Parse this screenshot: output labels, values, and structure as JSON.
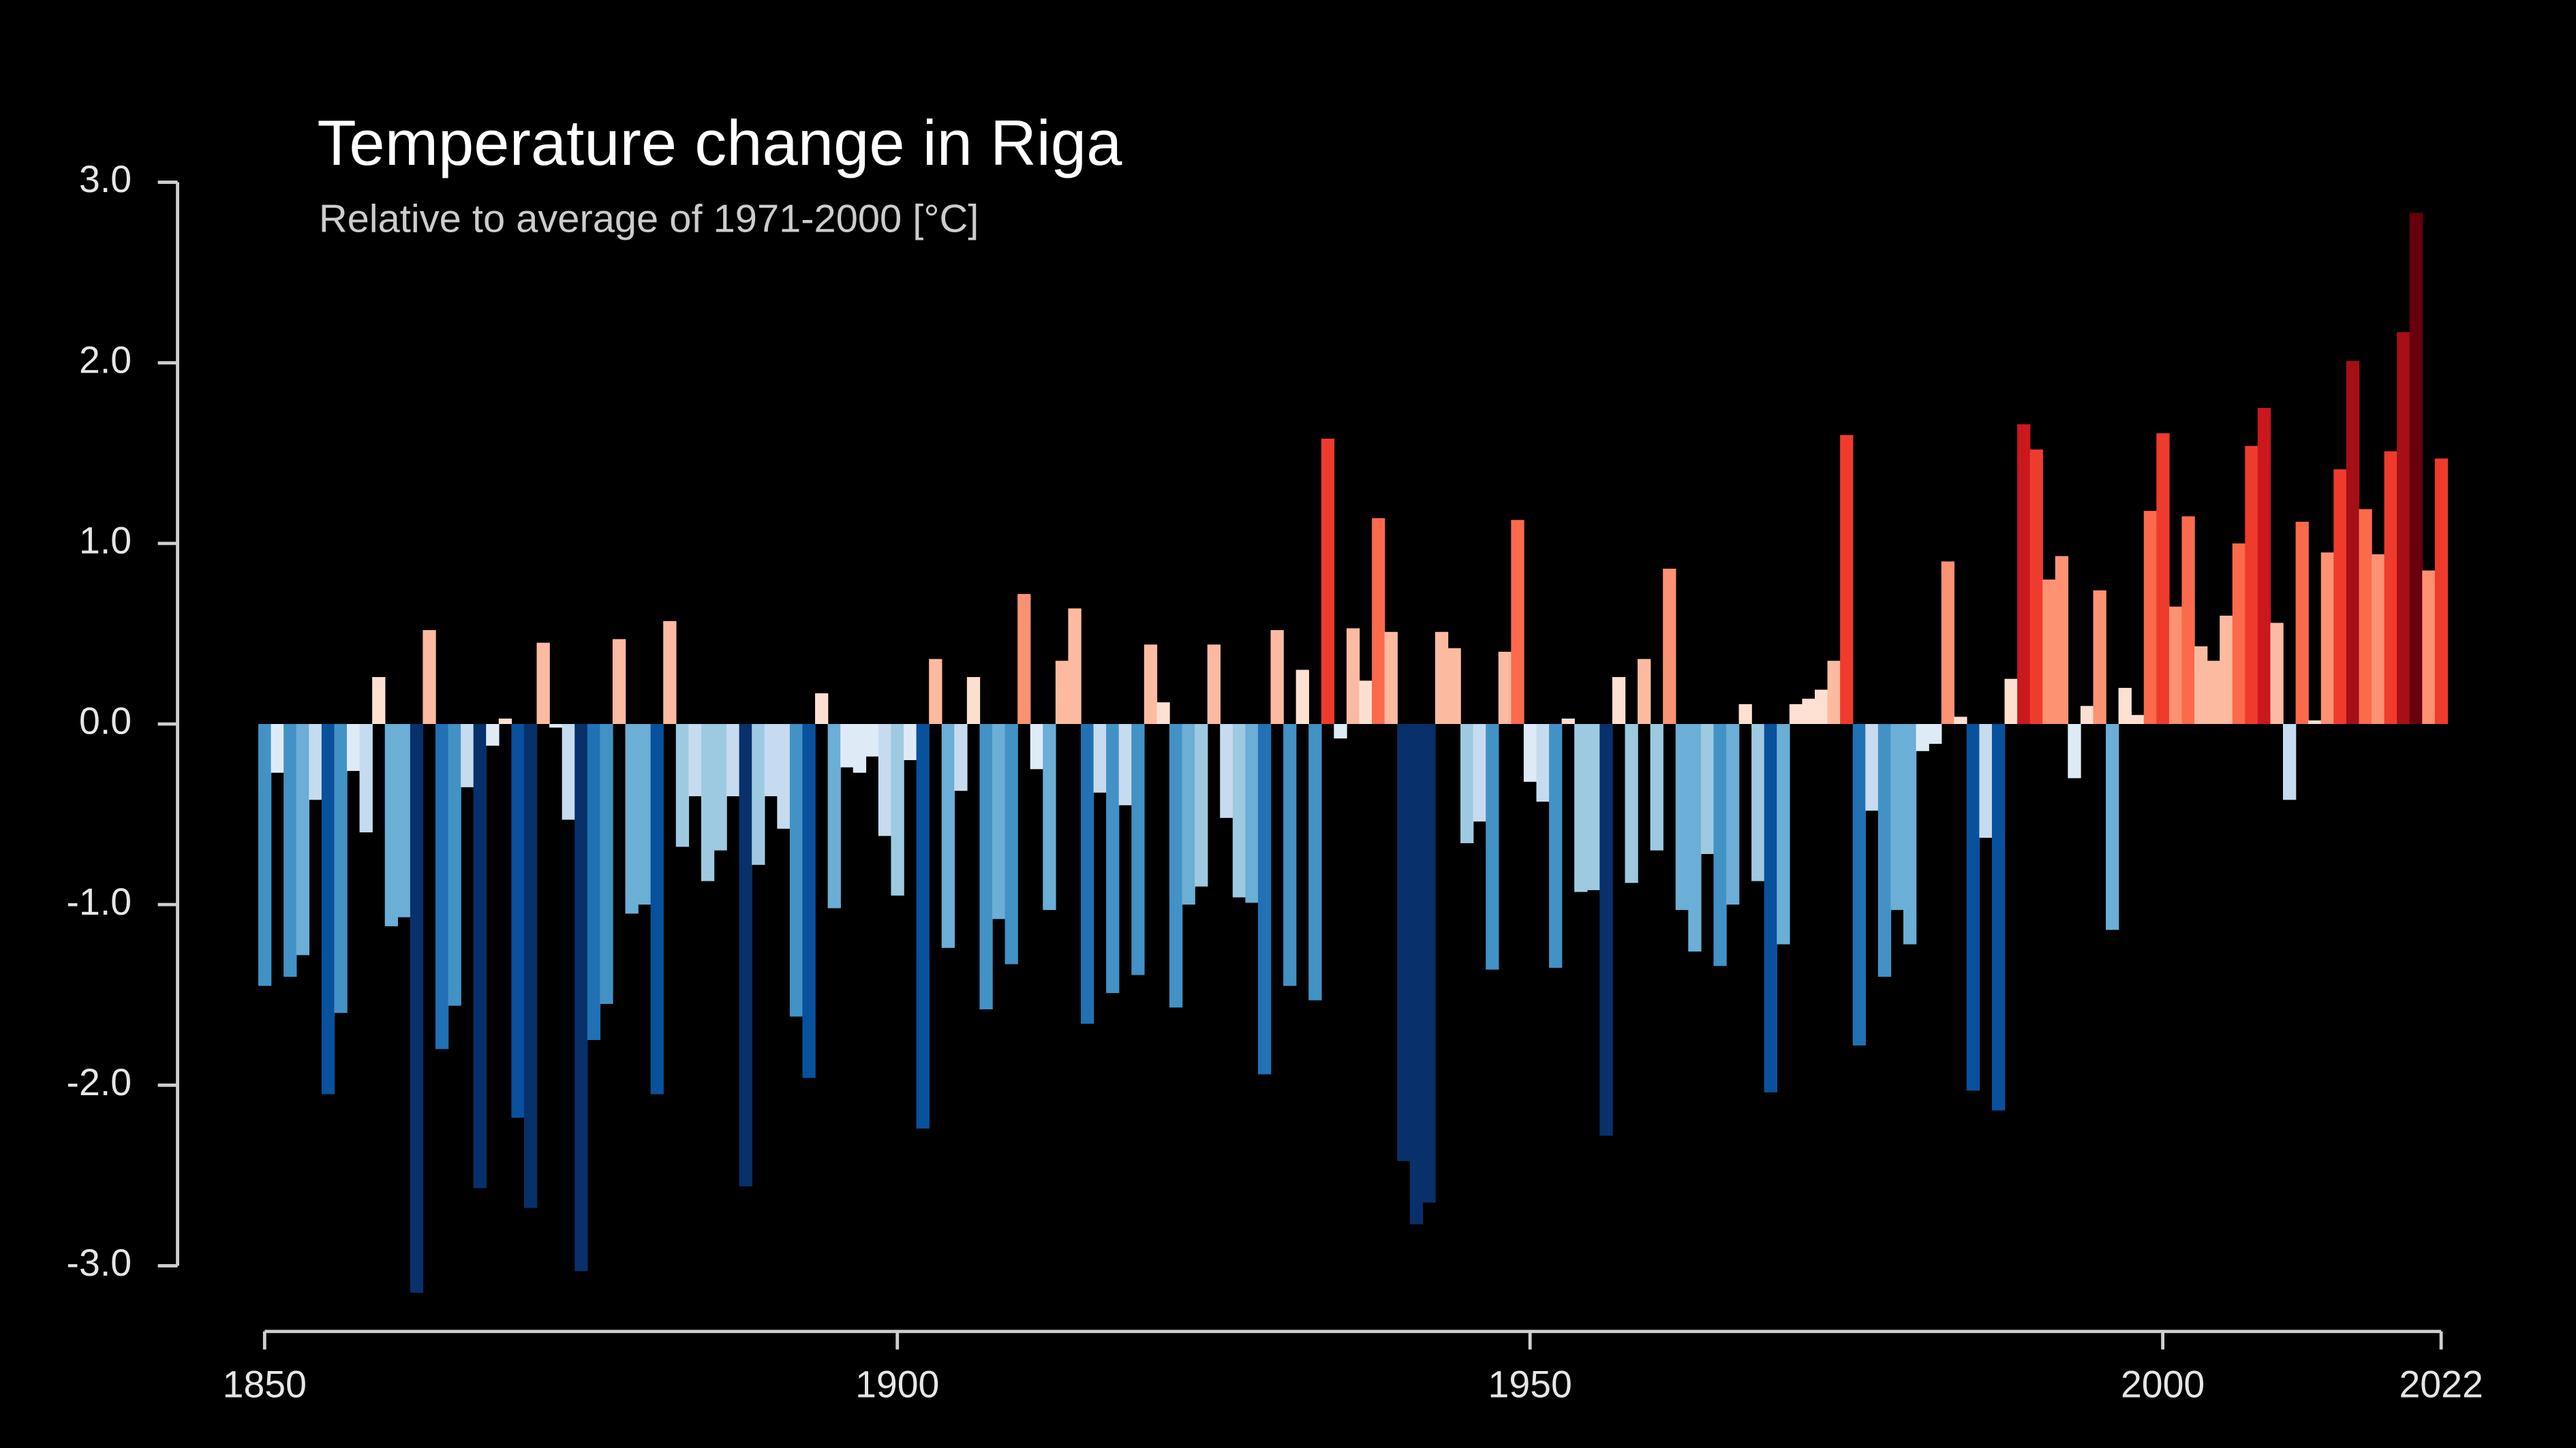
{
  "chart_data": {
    "type": "bar",
    "title": "Temperature change in Riga",
    "subtitle": "Relative to average of 1971-2000  [°C]",
    "x": [
      1850,
      1851,
      1852,
      1853,
      1854,
      1855,
      1856,
      1857,
      1858,
      1859,
      1860,
      1861,
      1862,
      1863,
      1864,
      1865,
      1866,
      1867,
      1868,
      1869,
      1870,
      1871,
      1872,
      1873,
      1874,
      1875,
      1876,
      1877,
      1878,
      1879,
      1880,
      1881,
      1882,
      1883,
      1884,
      1885,
      1886,
      1887,
      1888,
      1889,
      1890,
      1891,
      1892,
      1893,
      1894,
      1895,
      1896,
      1897,
      1898,
      1899,
      1900,
      1901,
      1902,
      1903,
      1904,
      1905,
      1906,
      1907,
      1908,
      1909,
      1910,
      1911,
      1912,
      1913,
      1914,
      1915,
      1916,
      1917,
      1918,
      1919,
      1920,
      1921,
      1922,
      1923,
      1924,
      1925,
      1926,
      1927,
      1928,
      1929,
      1930,
      1931,
      1932,
      1933,
      1934,
      1935,
      1936,
      1937,
      1938,
      1939,
      1940,
      1941,
      1942,
      1943,
      1944,
      1945,
      1946,
      1947,
      1948,
      1949,
      1950,
      1951,
      1952,
      1953,
      1954,
      1955,
      1956,
      1957,
      1958,
      1959,
      1960,
      1961,
      1962,
      1963,
      1964,
      1965,
      1966,
      1967,
      1968,
      1969,
      1970,
      1971,
      1972,
      1973,
      1974,
      1975,
      1976,
      1977,
      1978,
      1979,
      1980,
      1981,
      1982,
      1983,
      1984,
      1985,
      1986,
      1987,
      1988,
      1989,
      1990,
      1991,
      1992,
      1993,
      1994,
      1995,
      1996,
      1997,
      1998,
      1999,
      2000,
      2001,
      2002,
      2003,
      2004,
      2005,
      2006,
      2007,
      2008,
      2009,
      2010,
      2011,
      2012,
      2013,
      2014,
      2015,
      2016,
      2017,
      2018,
      2019,
      2020,
      2021,
      2022
    ],
    "values": [
      -1.45,
      -0.27,
      -1.4,
      -1.28,
      -0.42,
      -2.05,
      -1.6,
      -0.26,
      -0.6,
      0.26,
      -1.12,
      -1.07,
      -3.15,
      0.52,
      -1.8,
      -1.56,
      -0.35,
      -2.57,
      -0.12,
      0.03,
      -2.18,
      -2.68,
      0.45,
      -0.02,
      -0.53,
      -3.03,
      -1.75,
      -1.55,
      0.47,
      -1.05,
      -1.0,
      -2.05,
      0.57,
      -0.68,
      -0.4,
      -0.87,
      -0.7,
      -0.4,
      -2.56,
      -0.78,
      -0.4,
      -0.58,
      -1.62,
      -1.96,
      0.17,
      -1.02,
      -0.24,
      -0.27,
      -0.18,
      -0.62,
      -0.95,
      -0.2,
      -2.24,
      0.36,
      -1.24,
      -0.37,
      0.26,
      -1.58,
      -1.08,
      -1.33,
      0.72,
      -0.25,
      -1.03,
      0.35,
      0.64,
      -1.66,
      -0.38,
      -1.49,
      -0.45,
      -1.39,
      0.44,
      0.12,
      -1.57,
      -1.0,
      -0.9,
      0.44,
      -0.52,
      -0.96,
      -0.99,
      -1.94,
      0.52,
      -1.45,
      0.3,
      -1.53,
      1.58,
      -0.08,
      0.53,
      0.24,
      1.14,
      0.51,
      -2.42,
      -2.77,
      -2.65,
      0.51,
      0.42,
      -0.66,
      -0.54,
      -1.36,
      0.4,
      1.13,
      -0.32,
      -0.43,
      -1.35,
      0.03,
      -0.93,
      -0.92,
      -2.28,
      0.26,
      -0.88,
      0.36,
      -0.7,
      0.86,
      -1.03,
      -1.26,
      -0.72,
      -1.34,
      -1.0,
      0.11,
      -0.87,
      -2.04,
      -1.22,
      0.11,
      0.14,
      0.19,
      0.35,
      1.6,
      -1.78,
      -0.48,
      -1.4,
      -1.03,
      -1.22,
      -0.15,
      -0.11,
      0.9,
      0.04,
      -2.03,
      -0.63,
      -2.14,
      0.25,
      1.66,
      1.52,
      0.8,
      0.93,
      -0.3,
      0.1,
      0.74,
      -1.14,
      0.2,
      0.05,
      1.18,
      1.61,
      0.65,
      1.15,
      0.43,
      0.35,
      0.6,
      1.0,
      1.54,
      1.75,
      0.56,
      -0.42,
      1.12,
      0.02,
      0.95,
      1.41,
      2.01,
      1.19,
      0.94,
      1.51,
      2.17,
      2.83,
      0.85,
      1.47
    ],
    "colormap": [
      "#08306b",
      "#08519c",
      "#2171b5",
      "#4292c6",
      "#6baed6",
      "#9ecae1",
      "#c6dbef",
      "#deebf7",
      "#fee0d2",
      "#fcbba1",
      "#fc9272",
      "#fb6a4a",
      "#ef3b2c",
      "#cb181d",
      "#a50f15",
      "#67000d"
    ],
    "clim": [
      -2.6,
      2.6
    ],
    "xlim": [
      1850,
      2022
    ],
    "xticks": [
      1850,
      1900,
      1950,
      2000,
      2022
    ],
    "ylim": [
      -3,
      3
    ],
    "yticks": [
      {
        "value": 3,
        "label": "3.0"
      },
      {
        "value": 2,
        "label": "2.0"
      },
      {
        "value": 1,
        "label": "1.0"
      },
      {
        "value": 0,
        "label": "0.0"
      },
      {
        "value": -1,
        "label": "-1.0"
      },
      {
        "value": -2,
        "label": "-2.0"
      },
      {
        "value": -3,
        "label": "-3.0"
      }
    ]
  }
}
